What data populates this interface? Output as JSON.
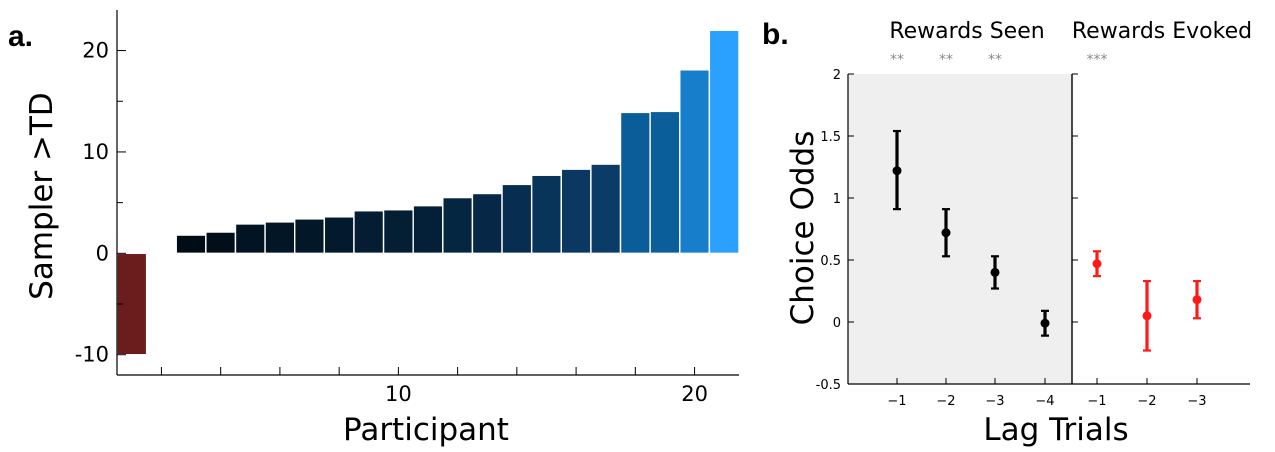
{
  "chart_data": [
    {
      "type": "bar",
      "panel_label": "a.",
      "xlabel": "Participant",
      "ylabel": "Sampler >TD",
      "categories": [
        1,
        2,
        3,
        4,
        5,
        6,
        7,
        8,
        9,
        10,
        11,
        12,
        13,
        14,
        15,
        16,
        17,
        18,
        19,
        20,
        21
      ],
      "values": [
        -10,
        0,
        1.8,
        2.1,
        2.9,
        3.1,
        3.4,
        3.6,
        4.2,
        4.3,
        4.7,
        5.5,
        5.9,
        6.8,
        7.7,
        8.3,
        8.8,
        13.9,
        14.0,
        18.1,
        22.0
      ],
      "xlim": [
        0.5,
        21.5
      ],
      "ylim": [
        -12,
        24
      ],
      "xticks": [
        10,
        20
      ],
      "yticks": [
        -10,
        0,
        10,
        20
      ],
      "negative_color": "#6b1d1d",
      "colormap": [
        "#000d17",
        "#0a3a64",
        "#0a66a6",
        "#2aa0ff"
      ]
    },
    {
      "type": "scatter",
      "panel_label": "b.",
      "xlabel": "Lag Trials",
      "ylabel": "Choice Odds",
      "ylim": [
        -0.5,
        2
      ],
      "yticks": [
        -0.5,
        0,
        0.5,
        1,
        1.5,
        2
      ],
      "groups": [
        {
          "title": "Rewards Seen",
          "color": "#000000",
          "background": "#efefef",
          "x": [
            "−1",
            "−2",
            "−3",
            "−4"
          ],
          "y": [
            1.22,
            0.72,
            0.4,
            -0.01
          ],
          "err_low": [
            0.31,
            0.19,
            0.13,
            0.1
          ],
          "err_high": [
            0.32,
            0.19,
            0.13,
            0.1
          ],
          "significance": [
            "**",
            "**",
            "**",
            ""
          ]
        },
        {
          "title": "Rewards Evoked",
          "color": "#ff1a1a",
          "background": "#ffffff",
          "x": [
            "−1",
            "−2",
            "−3"
          ],
          "y": [
            0.47,
            0.05,
            0.18
          ],
          "err_low": [
            0.1,
            0.28,
            0.15
          ],
          "err_high": [
            0.1,
            0.28,
            0.15
          ],
          "significance": [
            "***",
            "",
            ""
          ]
        }
      ]
    }
  ]
}
